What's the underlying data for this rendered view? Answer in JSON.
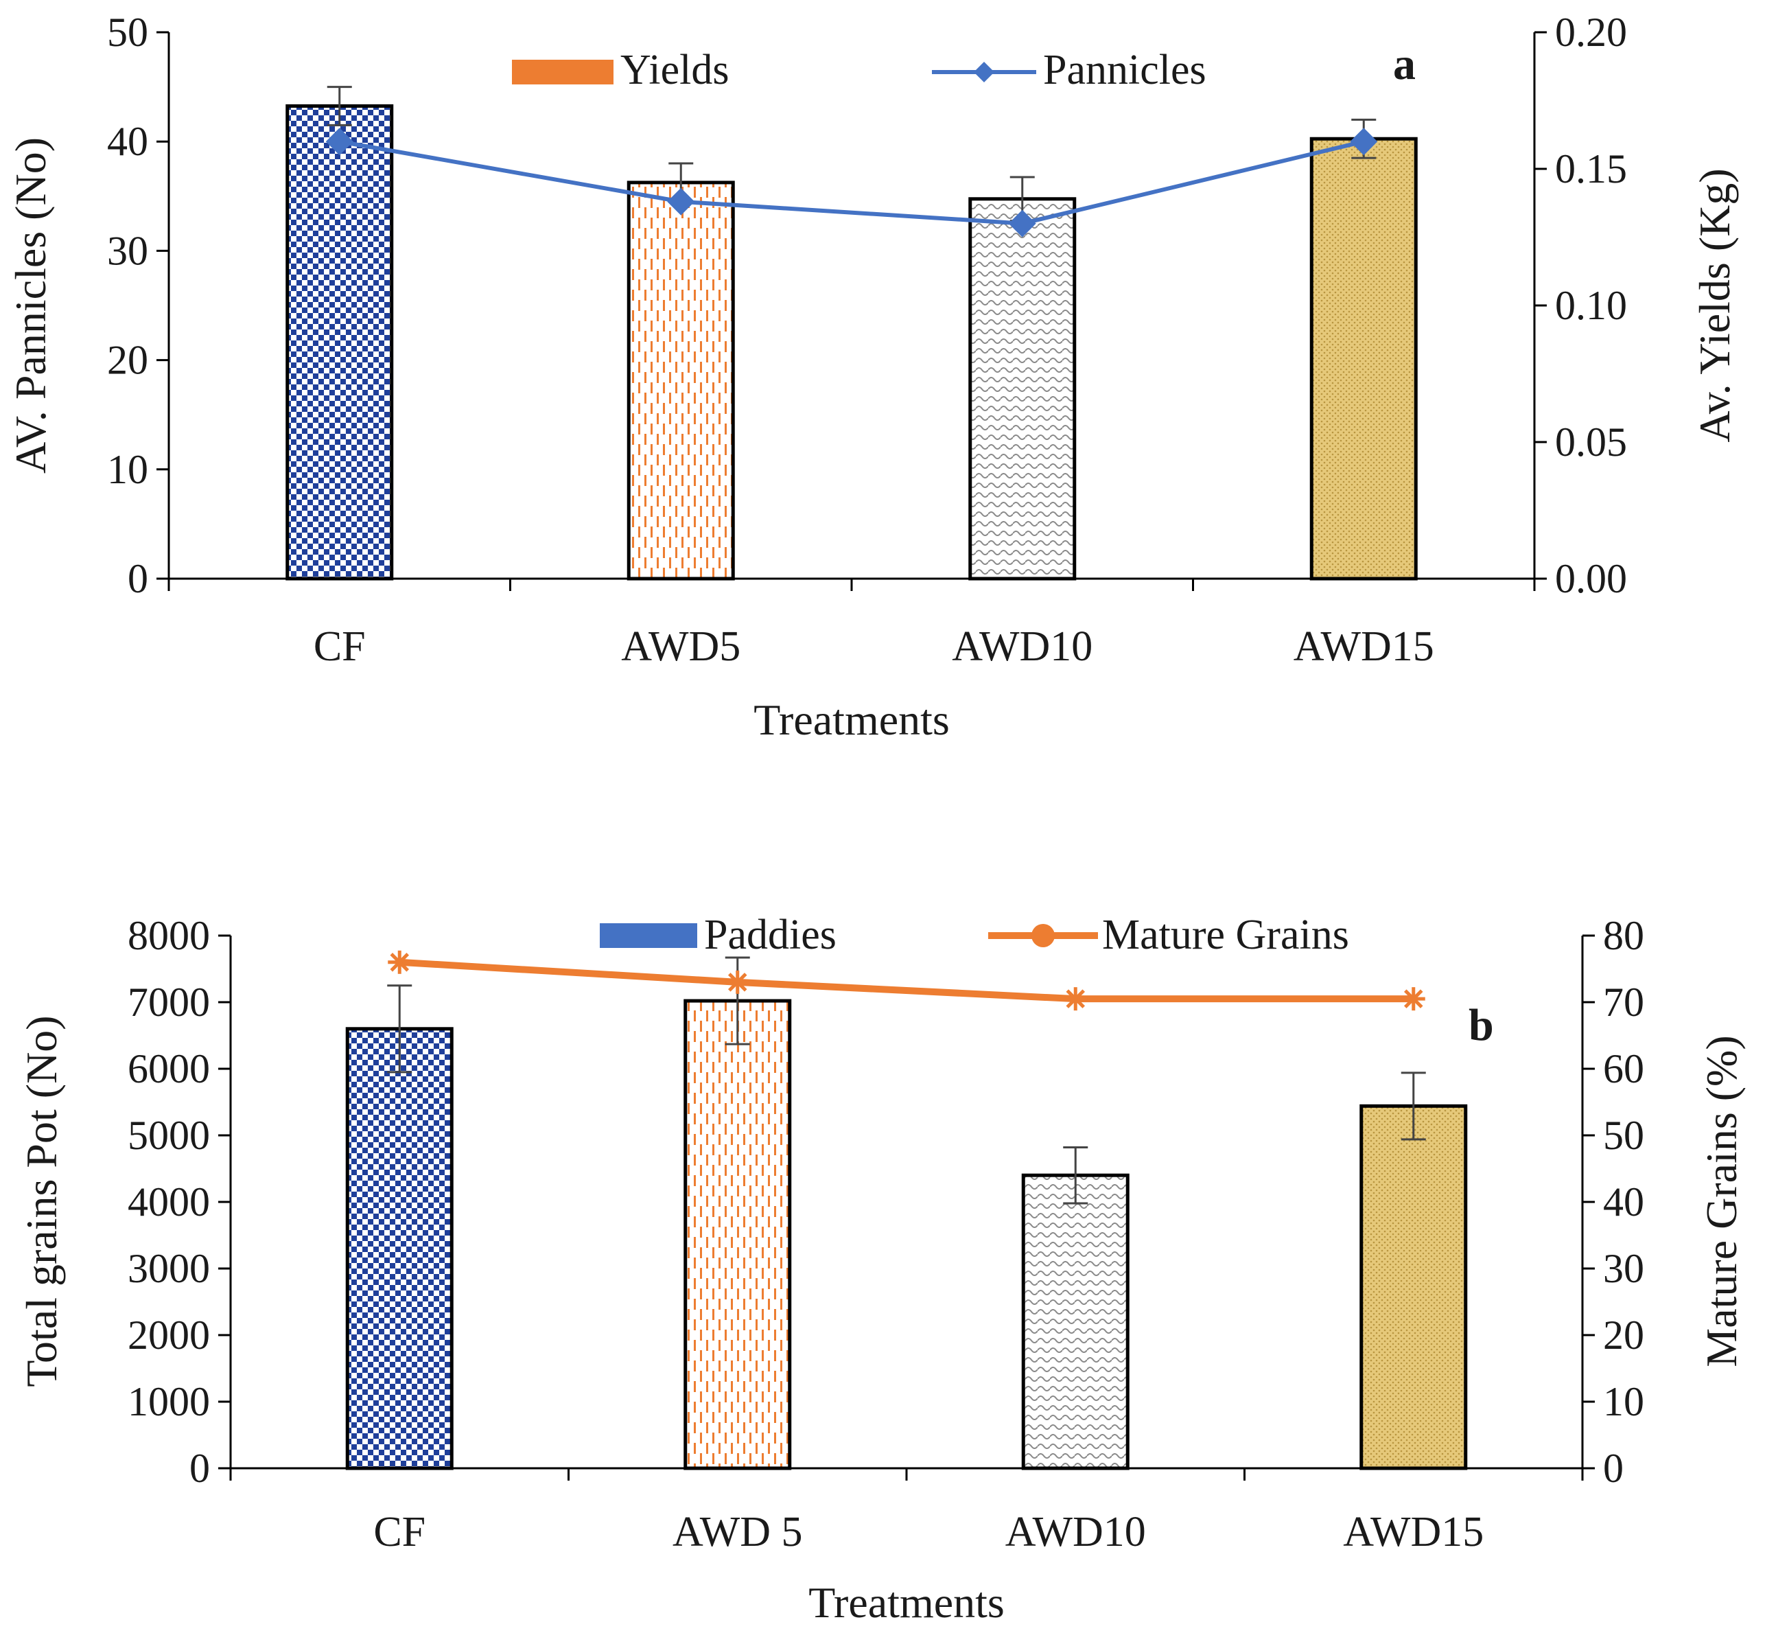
{
  "chart_data": [
    {
      "panel": "a",
      "type": "bar",
      "categories": [
        "CF",
        "AWD5",
        "AWD10",
        "AWD15"
      ],
      "xlabel": "Treatments",
      "ylabel": "AV. Pannicles (No)",
      "y2label": "Av. Yields (Kg)",
      "ylim": [
        0,
        50
      ],
      "y2lim": [
        0,
        0.2
      ],
      "yticks": [
        "0",
        "10",
        "20",
        "30",
        "40",
        "50"
      ],
      "y2ticks": [
        "0.00",
        "0.05",
        "0.10",
        "0.15",
        "0.20"
      ],
      "legend_position": "top",
      "series": [
        {
          "name": "Yields",
          "kind": "bar",
          "axis": "right",
          "values": [
            0.173,
            0.145,
            0.139,
            0.161
          ],
          "errors": [
            0.007,
            0.007,
            0.008,
            0.007
          ],
          "fills": [
            "blue-check",
            "orange-dash",
            "grey-wave",
            "gold-dots"
          ]
        },
        {
          "name": "Pannicles",
          "kind": "line",
          "axis": "left",
          "marker": "diamond",
          "values": [
            40,
            34.5,
            32.5,
            40
          ]
        }
      ],
      "colors": {
        "line": "#4472C4",
        "legend_bar": "#ED7D31"
      }
    },
    {
      "panel": "b",
      "type": "bar",
      "categories": [
        "CF",
        "AWD 5",
        "AWD10",
        "AWD15"
      ],
      "xlabel": "Treatments",
      "ylabel": "Total grains Pot (No)",
      "y2label": "Mature Grains (%)",
      "ylim": [
        0,
        8000
      ],
      "y2lim": [
        0,
        80
      ],
      "yticks": [
        "0",
        "1000",
        "2000",
        "3000",
        "4000",
        "5000",
        "6000",
        "7000",
        "8000"
      ],
      "y2ticks": [
        "0",
        "10",
        "20",
        "30",
        "40",
        "50",
        "60",
        "70",
        "80"
      ],
      "legend_position": "top",
      "series": [
        {
          "name": "Paddies",
          "kind": "bar",
          "axis": "left",
          "values": [
            6600,
            7020,
            4400,
            5440
          ],
          "errors": [
            650,
            650,
            420,
            500
          ],
          "fills": [
            "blue-check",
            "orange-dash",
            "grey-wave",
            "gold-dots"
          ]
        },
        {
          "name": "Mature Grains",
          "kind": "line",
          "axis": "right",
          "marker": "star",
          "values": [
            76,
            73,
            70.5,
            70.5
          ]
        }
      ],
      "colors": {
        "line": "#ED7D31",
        "legend_bar": "#4472C4"
      }
    }
  ]
}
